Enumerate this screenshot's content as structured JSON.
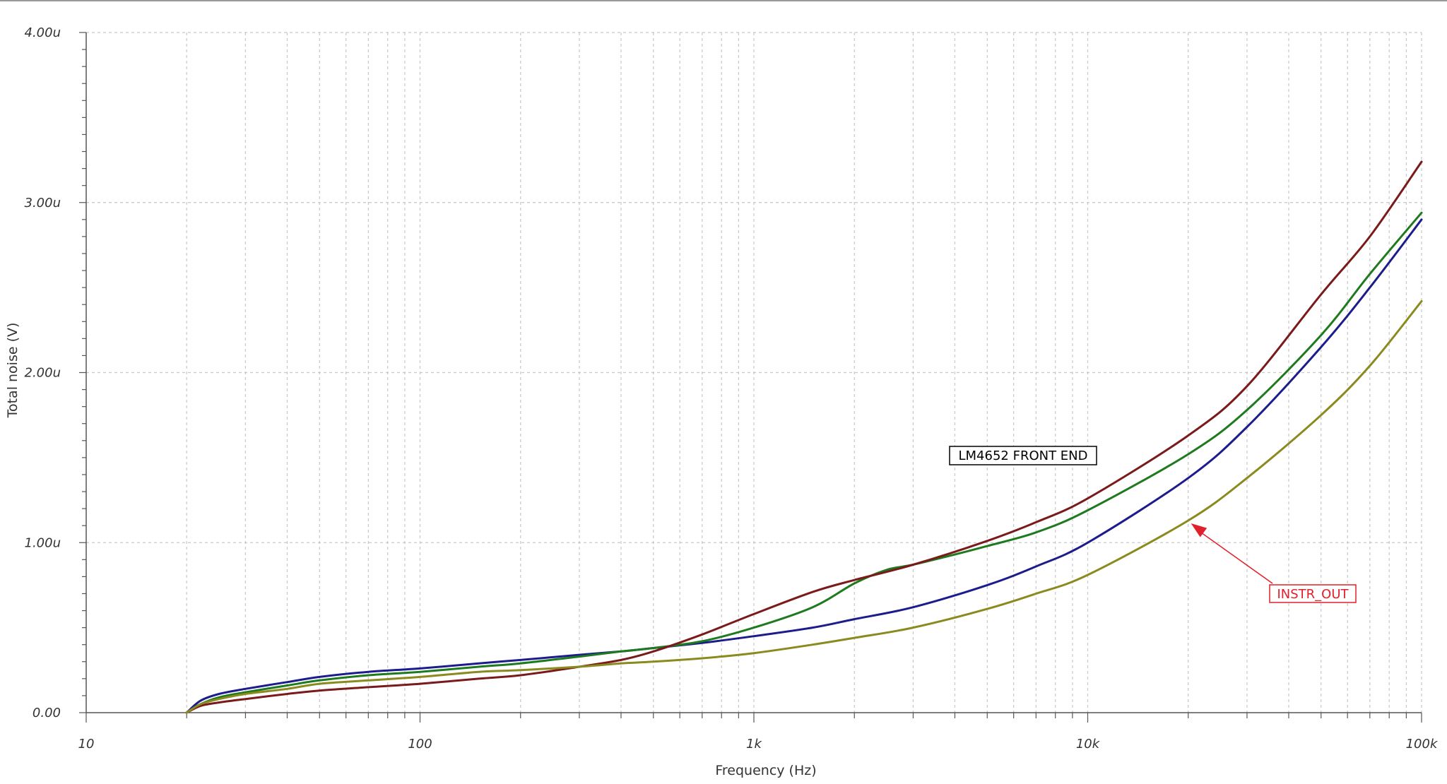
{
  "chart_data": {
    "type": "line",
    "xlabel": "Frequency (Hz)",
    "ylabel": "Total noise (V)",
    "x_scale": "log",
    "xlim": [
      10,
      100000
    ],
    "ylim": [
      0,
      4e-06
    ],
    "x_ticks": [
      {
        "value": 10,
        "label": "10"
      },
      {
        "value": 100,
        "label": "100"
      },
      {
        "value": 1000,
        "label": "1k"
      },
      {
        "value": 10000,
        "label": "10k"
      },
      {
        "value": 100000,
        "label": "100k"
      }
    ],
    "y_ticks": [
      {
        "value": 0,
        "label": "0.00"
      },
      {
        "value": 1e-06,
        "label": "1.00u"
      },
      {
        "value": 2e-06,
        "label": "2.00u"
      },
      {
        "value": 3e-06,
        "label": "3.00u"
      },
      {
        "value": 4e-06,
        "label": "4.00u"
      }
    ],
    "grid": true,
    "series": [
      {
        "color": "#1c1c8c",
        "x": [
          20,
          22,
          25,
          30,
          40,
          50,
          70,
          100,
          150,
          200,
          300,
          400,
          500,
          700,
          1000,
          1500,
          2000,
          3000,
          5000,
          7000,
          10000,
          20000,
          30000,
          50000,
          70000,
          100000
        ],
        "y": [
          0,
          7e-08,
          1.1e-07,
          1.4e-07,
          1.8e-07,
          2.1e-07,
          2.4e-07,
          2.6e-07,
          2.9e-07,
          3.1e-07,
          3.4e-07,
          3.6e-07,
          3.8e-07,
          4.1e-07,
          4.5e-07,
          5e-07,
          5.5e-07,
          6.2e-07,
          7.5e-07,
          8.6e-07,
          1e-06,
          1.38e-06,
          1.68e-06,
          2.15e-06,
          2.5e-06,
          2.9e-06
        ]
      },
      {
        "color": "#1e7a1e",
        "x": [
          20,
          22,
          25,
          30,
          40,
          50,
          70,
          100,
          150,
          200,
          300,
          400,
          500,
          700,
          1000,
          1500,
          2000,
          2500,
          3000,
          4000,
          5000,
          7000,
          10000,
          20000,
          30000,
          50000,
          70000,
          100000
        ],
        "y": [
          0,
          5e-08,
          9e-08,
          1.2e-07,
          1.6e-07,
          1.9e-07,
          2.2e-07,
          2.4e-07,
          2.7e-07,
          2.9e-07,
          3.3e-07,
          3.6e-07,
          3.8e-07,
          4.2e-07,
          5e-07,
          6.2e-07,
          7.6e-07,
          8.4e-07,
          8.7e-07,
          9.3e-07,
          9.8e-07,
          1.06e-06,
          1.19e-06,
          1.52e-06,
          1.78e-06,
          2.22e-06,
          2.58e-06,
          2.94e-06
        ]
      },
      {
        "color": "#7a1a1a",
        "x": [
          20,
          22,
          25,
          30,
          40,
          50,
          70,
          100,
          150,
          200,
          300,
          400,
          500,
          700,
          1000,
          1500,
          2000,
          3000,
          5000,
          7000,
          10000,
          20000,
          30000,
          50000,
          70000,
          100000
        ],
        "y": [
          0,
          4e-08,
          6e-08,
          8e-08,
          1.1e-07,
          1.3e-07,
          1.5e-07,
          1.7e-07,
          2e-07,
          2.2e-07,
          2.7e-07,
          3.1e-07,
          3.6e-07,
          4.6e-07,
          5.8e-07,
          7.1e-07,
          7.8e-07,
          8.7e-07,
          1.01e-06,
          1.12e-06,
          1.26e-06,
          1.63e-06,
          1.92e-06,
          2.46e-06,
          2.8e-06,
          3.24e-06
        ]
      },
      {
        "color": "#8a8a1e",
        "x": [
          20,
          22,
          25,
          30,
          40,
          50,
          70,
          100,
          150,
          200,
          300,
          400,
          500,
          700,
          1000,
          1500,
          2000,
          3000,
          5000,
          7000,
          10000,
          20000,
          30000,
          50000,
          70000,
          100000
        ],
        "y": [
          0,
          5e-08,
          8e-08,
          1.1e-07,
          1.4e-07,
          1.7e-07,
          1.9e-07,
          2.1e-07,
          2.4e-07,
          2.5e-07,
          2.7e-07,
          2.9e-07,
          3e-07,
          3.2e-07,
          3.5e-07,
          4e-07,
          4.4e-07,
          5e-07,
          6.1e-07,
          7e-07,
          8.1e-07,
          1.13e-06,
          1.38e-06,
          1.75e-06,
          2.04e-06,
          2.42e-06
        ]
      }
    ],
    "annotations": [
      {
        "text": "LM4652 FRONT END",
        "color": "#000000"
      },
      {
        "text": "INSTR_OUT",
        "color": "#e0202a"
      }
    ]
  }
}
